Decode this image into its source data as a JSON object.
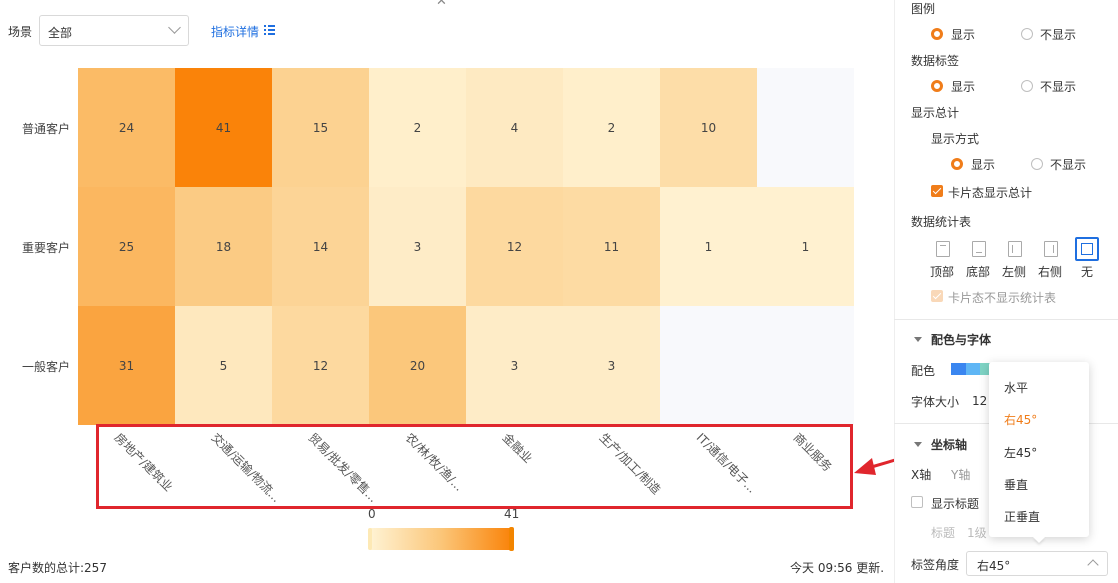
{
  "toolbar": {
    "scene_label": "场景",
    "scene_value": "全部",
    "metric_details": "指标详情"
  },
  "chart_data": {
    "type": "heatmap",
    "rows": [
      "普通客户",
      "重要客户",
      "一般客户"
    ],
    "columns": [
      "房地产/建筑业",
      "交通/运输/物流...",
      "贸易/批发/零售...",
      "农/林/牧/渔/...",
      "金融业",
      "生产/加工/制造",
      "IT/通信/电子...",
      "商业服务"
    ],
    "values": [
      [
        24,
        41,
        15,
        2,
        4,
        2,
        10,
        null
      ],
      [
        25,
        18,
        14,
        3,
        12,
        11,
        1,
        1
      ],
      [
        31,
        5,
        12,
        20,
        3,
        3,
        null,
        null
      ]
    ],
    "color_scale": {
      "min": 0,
      "max": 41,
      "min_color": "#fff3d4",
      "max_color": "#fa8309",
      "empty_color": "#f8f9fc"
    },
    "legend": {
      "min_label": "0",
      "max_label": "41"
    },
    "x_label_angle_deg": 45
  },
  "footer": {
    "total": "客户数的总计:257",
    "updated": "今天 09:56 更新."
  },
  "panel": {
    "legend_title": "图例",
    "legend_show": "显示",
    "legend_hide": "不显示",
    "data_label_title": "数据标签",
    "data_label_show": "显示",
    "data_label_hide": "不显示",
    "total_title": "显示总计",
    "display_mode": "显示方式",
    "display_show": "显示",
    "display_hide": "不显示",
    "card_show_total": "卡片态显示总计",
    "stat_table_title": "数据统计表",
    "stat_positions": [
      "顶部",
      "底部",
      "左侧",
      "右侧",
      "无"
    ],
    "card_hide_stat": "卡片态不显示统计表",
    "color_font_section": "配色与字体",
    "color_label": "配色",
    "color_swatches": [
      "#3a86f0",
      "#5fb6f5",
      "#7ed3c4"
    ],
    "font_size_label": "字体大小",
    "font_size_value": "12",
    "axis_section": "坐标轴",
    "x_axis_tab": "X轴",
    "y_axis_tab": "Y轴",
    "show_title": "显示标题",
    "title_label": "标题",
    "title_level": "1级",
    "label_angle_label": "标签角度",
    "label_angle_value": "右45°"
  },
  "dropdown": {
    "options": [
      "水平",
      "右45°",
      "左45°",
      "垂直",
      "正垂直"
    ],
    "selected": "右45°"
  },
  "annotation": {
    "box_color": "#e0262d"
  }
}
